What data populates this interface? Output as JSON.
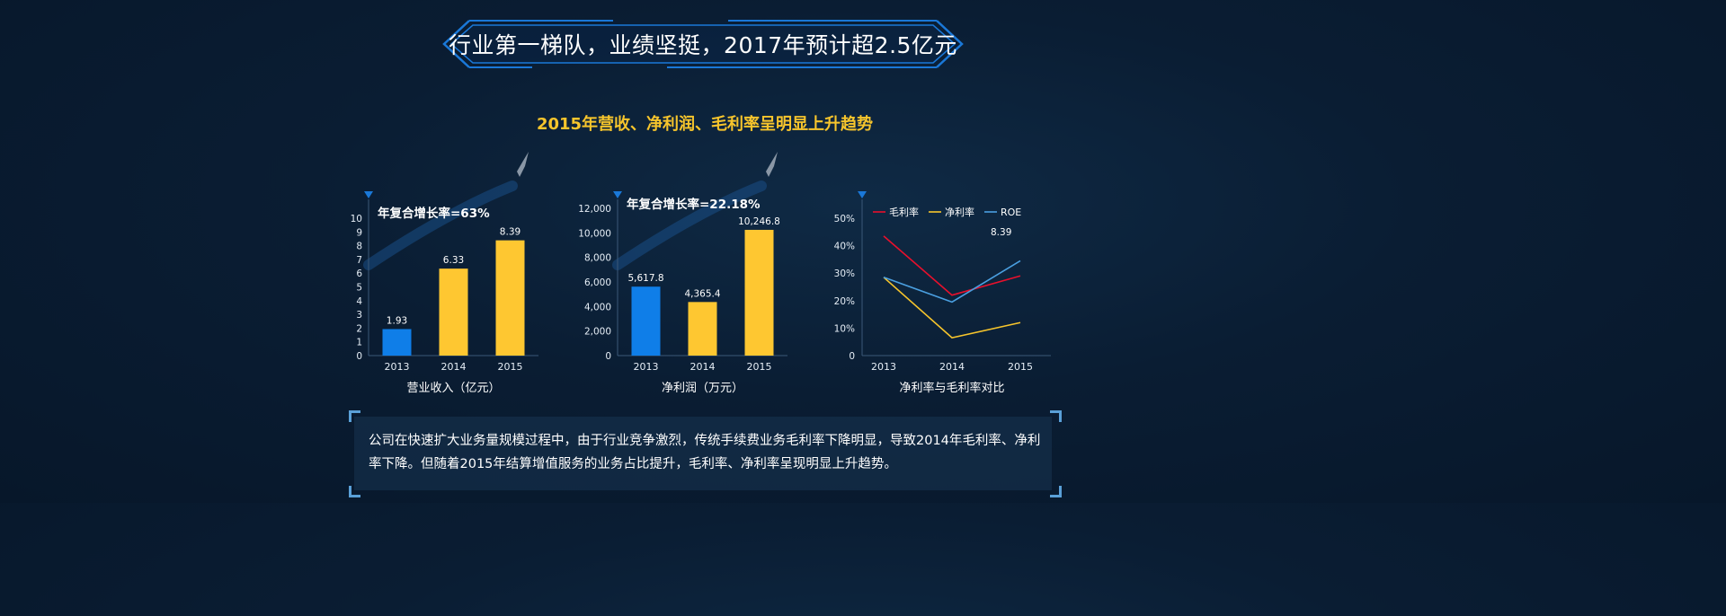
{
  "header": {
    "title": "行业第一梯队，业绩坚挺，2017年预计超2.5亿元",
    "subtitle": "2015年营收、净利润、毛利率呈明显上升趋势"
  },
  "colors": {
    "blue_bar": "#0f7ee8",
    "yellow_bar": "#fec731",
    "gross_margin": "#e8102c",
    "net_margin": "#f7c52c",
    "roe": "#4a9fe0",
    "accent": "#1a78d8"
  },
  "chart_data": [
    {
      "type": "bar",
      "categories": [
        "2013",
        "2014",
        "2015"
      ],
      "values": [
        1.93,
        6.33,
        8.39
      ],
      "value_labels": [
        "1.93",
        "6.33",
        "8.39"
      ],
      "ylim": [
        0,
        10
      ],
      "yticks": [
        "0",
        "1",
        "2",
        "3",
        "4",
        "5",
        "6",
        "7",
        "8",
        "9",
        "10"
      ],
      "annotation": "年复合增长率=63%",
      "xlabel": "营业收入（亿元）"
    },
    {
      "type": "bar",
      "categories": [
        "2013",
        "2014",
        "2015"
      ],
      "values": [
        5617.8,
        4365.4,
        10246.8
      ],
      "value_labels": [
        "5,617.8",
        "4,365.4",
        "10,246.8"
      ],
      "ylim": [
        0,
        12000
      ],
      "yticks": [
        "0",
        "2,000",
        "4,000",
        "6,000",
        "8,000",
        "10,000",
        "12,000"
      ],
      "annotation": "年复合增长率=22.18%",
      "xlabel": "净利润（万元）"
    },
    {
      "type": "line",
      "categories": [
        "2013",
        "2014",
        "2015"
      ],
      "ylim": [
        0,
        50
      ],
      "yticks": [
        "0",
        "10%",
        "20%",
        "30%",
        "40%",
        "50%"
      ],
      "series": [
        {
          "name": "毛利率",
          "values": [
            43.5,
            22,
            29
          ]
        },
        {
          "name": "净利率",
          "values": [
            28.5,
            6.5,
            12
          ]
        },
        {
          "name": "ROE",
          "values": [
            28.5,
            19.5,
            34.5
          ]
        }
      ],
      "annotation": "8.39",
      "legend": "top-left",
      "xlabel": "净利率与毛利率对比"
    }
  ],
  "note": {
    "text": "公司在快速扩大业务量规模过程中，由于行业竞争激烈，传统手续费业务毛利率下降明显，导致2014年毛利率、净利率下降。但随着2015年结算增值服务的业务占比提升，毛利率、净利率呈现明显上升趋势。"
  }
}
